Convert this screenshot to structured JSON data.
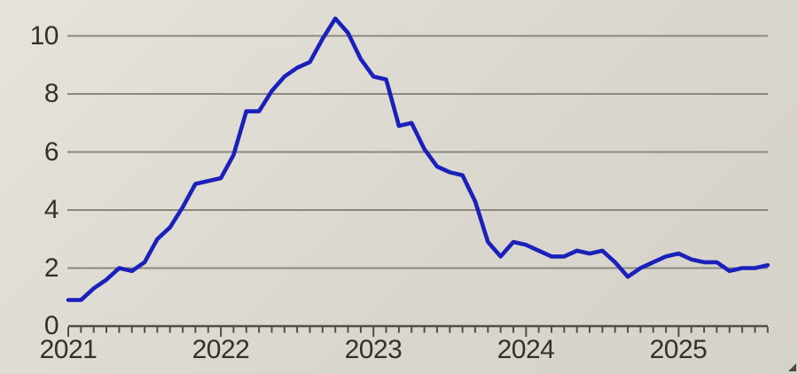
{
  "colors": {
    "background_light": "#e6e3db",
    "background_dark": "#d5d2ca",
    "gridline": "#8a887f",
    "axis": "#504e48",
    "tick_label_text": "#33312c",
    "line": "#1c20bb",
    "corner_triangle": "#4a4843"
  },
  "chart_data": {
    "type": "line",
    "title": "",
    "xlabel": "",
    "ylabel": "",
    "grid": "horizontal",
    "legend": "none",
    "x_unit": "month",
    "x_range": [
      "2021-01",
      "2025-08"
    ],
    "x_tick_years": [
      "2021",
      "2022",
      "2023",
      "2024",
      "2025"
    ],
    "y_ticks": [
      0,
      2,
      4,
      6,
      8,
      10
    ],
    "ylim": [
      0,
      11.2
    ],
    "series": [
      {
        "name": "series-1",
        "color": "#1c20bb",
        "start": "2021-01",
        "values": [
          0.9,
          0.9,
          1.3,
          1.6,
          2.0,
          1.9,
          2.2,
          3.0,
          3.4,
          4.1,
          4.9,
          5.0,
          5.1,
          5.9,
          7.4,
          7.4,
          8.1,
          8.6,
          8.9,
          9.1,
          9.9,
          10.6,
          10.1,
          9.2,
          8.6,
          8.5,
          6.9,
          7.0,
          6.1,
          5.5,
          5.3,
          5.2,
          4.3,
          2.9,
          2.4,
          2.9,
          2.8,
          2.6,
          2.4,
          2.4,
          2.6,
          2.5,
          2.6,
          2.2,
          1.7,
          2.0,
          2.2,
          2.4,
          2.5,
          2.3,
          2.2,
          2.2,
          1.9,
          2.0,
          2.0,
          2.1
        ]
      }
    ]
  }
}
